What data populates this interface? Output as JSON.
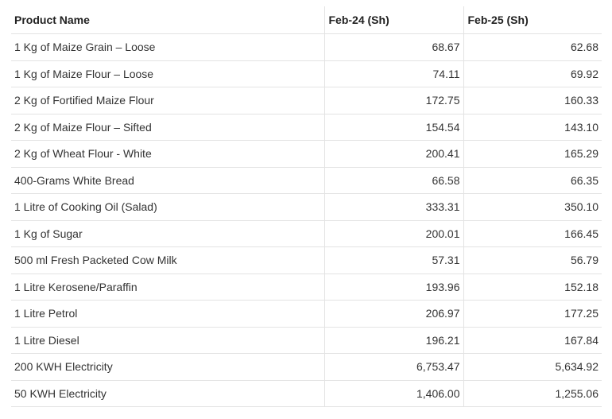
{
  "table": {
    "header": [
      "Product Name",
      "Feb-24 (Sh)",
      "Feb-25 (Sh)"
    ],
    "rows": [
      [
        "1 Kg of Maize Grain – Loose",
        "68.67",
        "62.68"
      ],
      [
        "1 Kg of Maize Flour – Loose",
        "74.11",
        "69.92"
      ],
      [
        "2 Kg of Fortified Maize Flour",
        "172.75",
        "160.33"
      ],
      [
        "2 Kg of Maize Flour – Sifted",
        "154.54",
        "143.10"
      ],
      [
        "2 Kg of Wheat Flour - White",
        "200.41",
        "165.29"
      ],
      [
        "400-Grams White Bread",
        "66.58",
        "66.35"
      ],
      [
        "1 Litre of Cooking Oil (Salad)",
        "333.31",
        "350.10"
      ],
      [
        "1 Kg of Sugar",
        "200.01",
        "166.45"
      ],
      [
        "500 ml Fresh Packeted Cow Milk",
        "57.31",
        "56.79"
      ],
      [
        "1 Litre Kerosene/Paraffin",
        "193.96",
        "152.18"
      ],
      [
        "1 Litre Petrol",
        "206.97",
        "177.25"
      ],
      [
        "1 Litre Diesel",
        "196.21",
        "167.84"
      ],
      [
        "200 KWH Electricity",
        "6,753.47",
        "5,634.92"
      ],
      [
        "50 KWH Electricity",
        "1,406.00",
        "1,255.06"
      ]
    ]
  }
}
